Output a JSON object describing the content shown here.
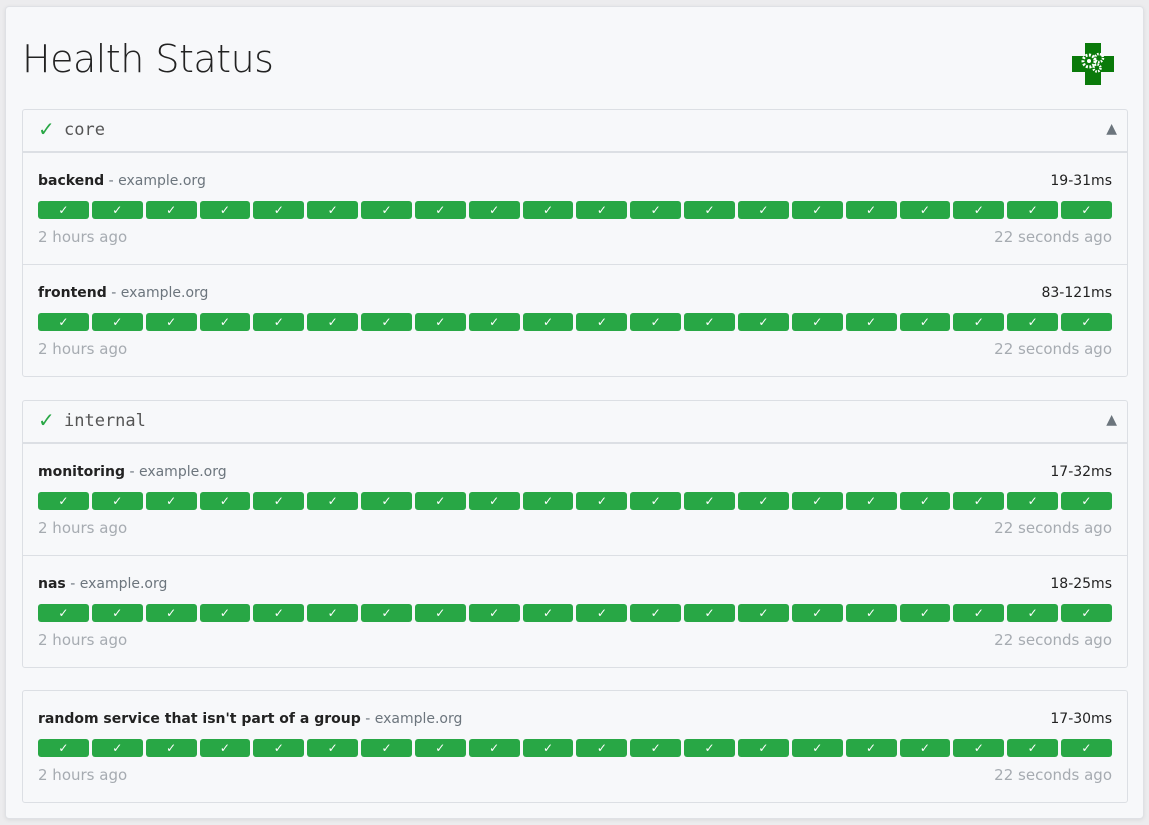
{
  "page": {
    "title": "Health Status",
    "logo": "health-gears-logo"
  },
  "colors": {
    "success": "#28a745",
    "logo": "#0a7a0a"
  },
  "groups": [
    {
      "name": "core",
      "status_icon": "check-icon",
      "status": "✓",
      "toggle": "▲",
      "services": [
        {
          "name": "backend",
          "hostname": "example.org",
          "response_range": "19-31ms",
          "oldest": "2 hours ago",
          "newest": "22 seconds ago"
        },
        {
          "name": "frontend",
          "hostname": "example.org",
          "response_range": "83-121ms",
          "oldest": "2 hours ago",
          "newest": "22 seconds ago"
        }
      ]
    },
    {
      "name": "internal",
      "status_icon": "check-icon",
      "status": "✓",
      "toggle": "▲",
      "services": [
        {
          "name": "monitoring",
          "hostname": "example.org",
          "response_range": "17-32ms",
          "oldest": "2 hours ago",
          "newest": "22 seconds ago"
        },
        {
          "name": "nas",
          "hostname": "example.org",
          "response_range": "18-25ms",
          "oldest": "2 hours ago",
          "newest": "22 seconds ago"
        }
      ]
    },
    {
      "name": "",
      "services": [
        {
          "name": "random service that isn't part of a group",
          "hostname": "example.org",
          "response_range": "17-30ms",
          "oldest": "2 hours ago",
          "newest": "22 seconds ago"
        }
      ]
    }
  ],
  "results_per_service": [
    "success",
    "success",
    "success",
    "success",
    "success",
    "success",
    "success",
    "success",
    "success",
    "success",
    "success",
    "success",
    "success",
    "success",
    "success",
    "success",
    "success",
    "success",
    "success",
    "success"
  ],
  "result_mark": "✓"
}
